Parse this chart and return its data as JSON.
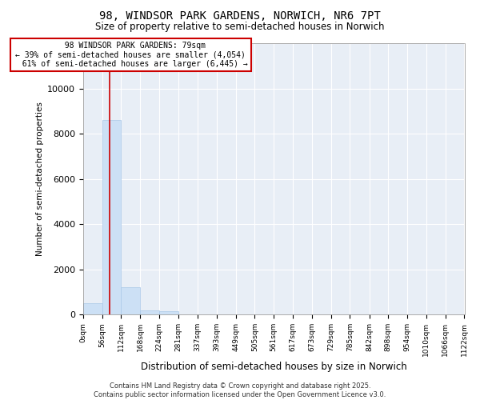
{
  "title": "98, WINDSOR PARK GARDENS, NORWICH, NR6 7PT",
  "subtitle": "Size of property relative to semi-detached houses in Norwich",
  "xlabel": "Distribution of semi-detached houses by size in Norwich",
  "ylabel": "Number of semi-detached properties",
  "bar_edges": [
    0,
    56,
    112,
    168,
    224,
    281,
    337,
    393,
    449,
    505,
    561,
    617,
    673,
    729,
    785,
    842,
    898,
    954,
    1010,
    1066,
    1122
  ],
  "bar_heights": [
    500,
    8600,
    1200,
    200,
    150,
    20,
    10,
    5,
    3,
    2,
    1,
    0,
    0,
    0,
    0,
    0,
    0,
    0,
    0,
    0
  ],
  "bar_color": "#cce0f5",
  "bar_edgecolor": "#aac8e8",
  "property_size": 79,
  "property_label": "98 WINDSOR PARK GARDENS: 79sqm",
  "pct_smaller": 39,
  "n_smaller": 4054,
  "pct_larger": 61,
  "n_larger": 6445,
  "redline_color": "#cc0000",
  "annotation_box_color": "#cc0000",
  "ylim": [
    0,
    12000
  ],
  "yticks": [
    0,
    2000,
    4000,
    6000,
    8000,
    10000,
    12000
  ],
  "xtick_labels": [
    "0sqm",
    "56sqm",
    "112sqm",
    "168sqm",
    "224sqm",
    "281sqm",
    "337sqm",
    "393sqm",
    "449sqm",
    "505sqm",
    "561sqm",
    "617sqm",
    "673sqm",
    "729sqm",
    "785sqm",
    "842sqm",
    "898sqm",
    "954sqm",
    "1010sqm",
    "1066sqm",
    "1122sqm"
  ],
  "background_color": "#e8eef6",
  "footer_line1": "Contains HM Land Registry data © Crown copyright and database right 2025.",
  "footer_line2": "Contains public sector information licensed under the Open Government Licence v3.0."
}
